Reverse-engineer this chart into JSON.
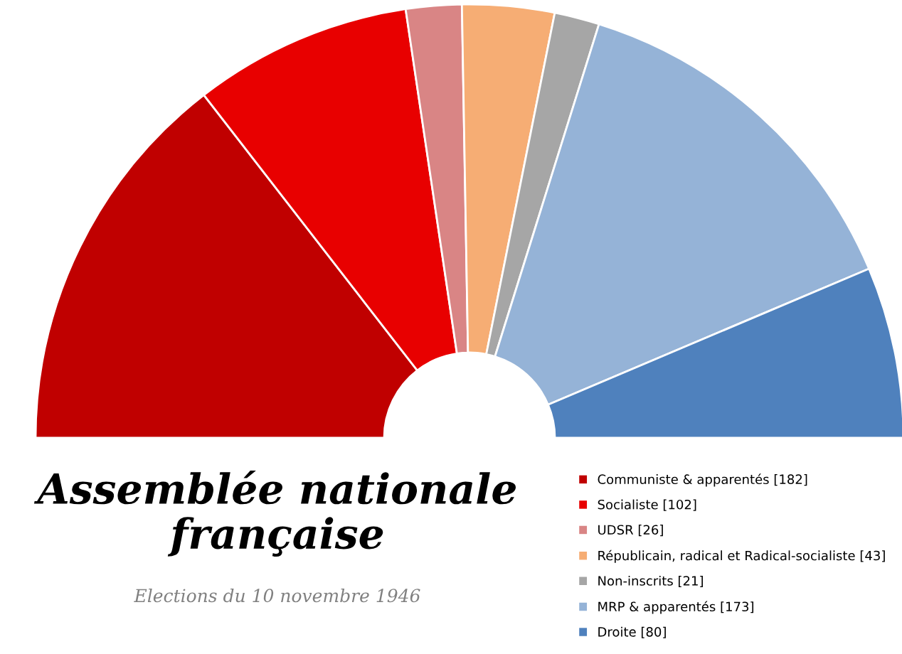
{
  "chart_data": {
    "type": "donut",
    "title": "Assemblée nationale\nfrançaise",
    "subtitle": "Elections du 10 novembre 1946",
    "categories": [
      "Communiste & apparentés [182]",
      "Socialiste [102]",
      "UDSR [26]",
      "Républicain, radical et Radical-socialiste [43]",
      "Non-inscrits [21]",
      "MRP & apparentés [173]",
      "Droite [80]"
    ],
    "values": [
      182,
      102,
      26,
      43,
      21,
      173,
      80
    ],
    "colors": [
      "#c00000",
      "#e80000",
      "#d98585",
      "#f6ad74",
      "#a6a6a6",
      "#95b3d7",
      "#4f81bd"
    ],
    "legend": "bottom right"
  }
}
